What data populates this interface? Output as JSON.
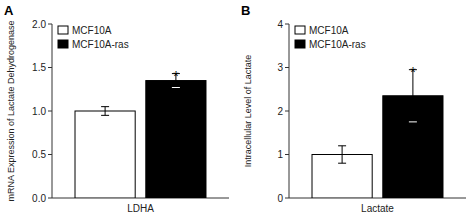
{
  "chart_data": [
    {
      "type": "bar",
      "title": "A",
      "y_label": "mRNA Expression of Lactate Dehydrogenase",
      "categories": [
        "LDHA"
      ],
      "series": [
        {
          "name": "MCF10A",
          "color": "#ffffff",
          "values": [
            1.0
          ],
          "errors": [
            0.05
          ]
        },
        {
          "name": "MCF10A-ras",
          "color": "#000000",
          "values": [
            1.35
          ],
          "errors": [
            0.08
          ]
        }
      ],
      "ylim": [
        0,
        2.0
      ],
      "yticks": [
        {
          "value": 0.0,
          "label": "0.0"
        },
        0.5,
        {
          "value": 1.0,
          "label": "1.0"
        },
        1.5,
        {
          "value": 2.0,
          "label": "2.0"
        }
      ],
      "annotations": [
        {
          "text": "*",
          "series": "MCF10A-ras",
          "y": 1.45
        }
      ],
      "legend": "upper left",
      "grid": false
    },
    {
      "type": "bar",
      "title": "B",
      "y_label": "Intracellular Level of Lactate",
      "categories": [
        "Lactate"
      ],
      "series": [
        {
          "name": "MCF10A",
          "color": "#ffffff",
          "values": [
            1.0
          ],
          "errors": [
            0.2
          ]
        },
        {
          "name": "MCF10A-ras",
          "color": "#000000",
          "values": [
            2.35
          ],
          "errors": [
            0.6
          ]
        }
      ],
      "ylim": [
        0,
        4.0
      ],
      "yticks": [
        0,
        1,
        2,
        3,
        4
      ],
      "annotations": [
        {
          "text": "*",
          "series": "MCF10A-ras",
          "y": 3.0
        }
      ],
      "legend": "upper left",
      "grid": false
    }
  ]
}
